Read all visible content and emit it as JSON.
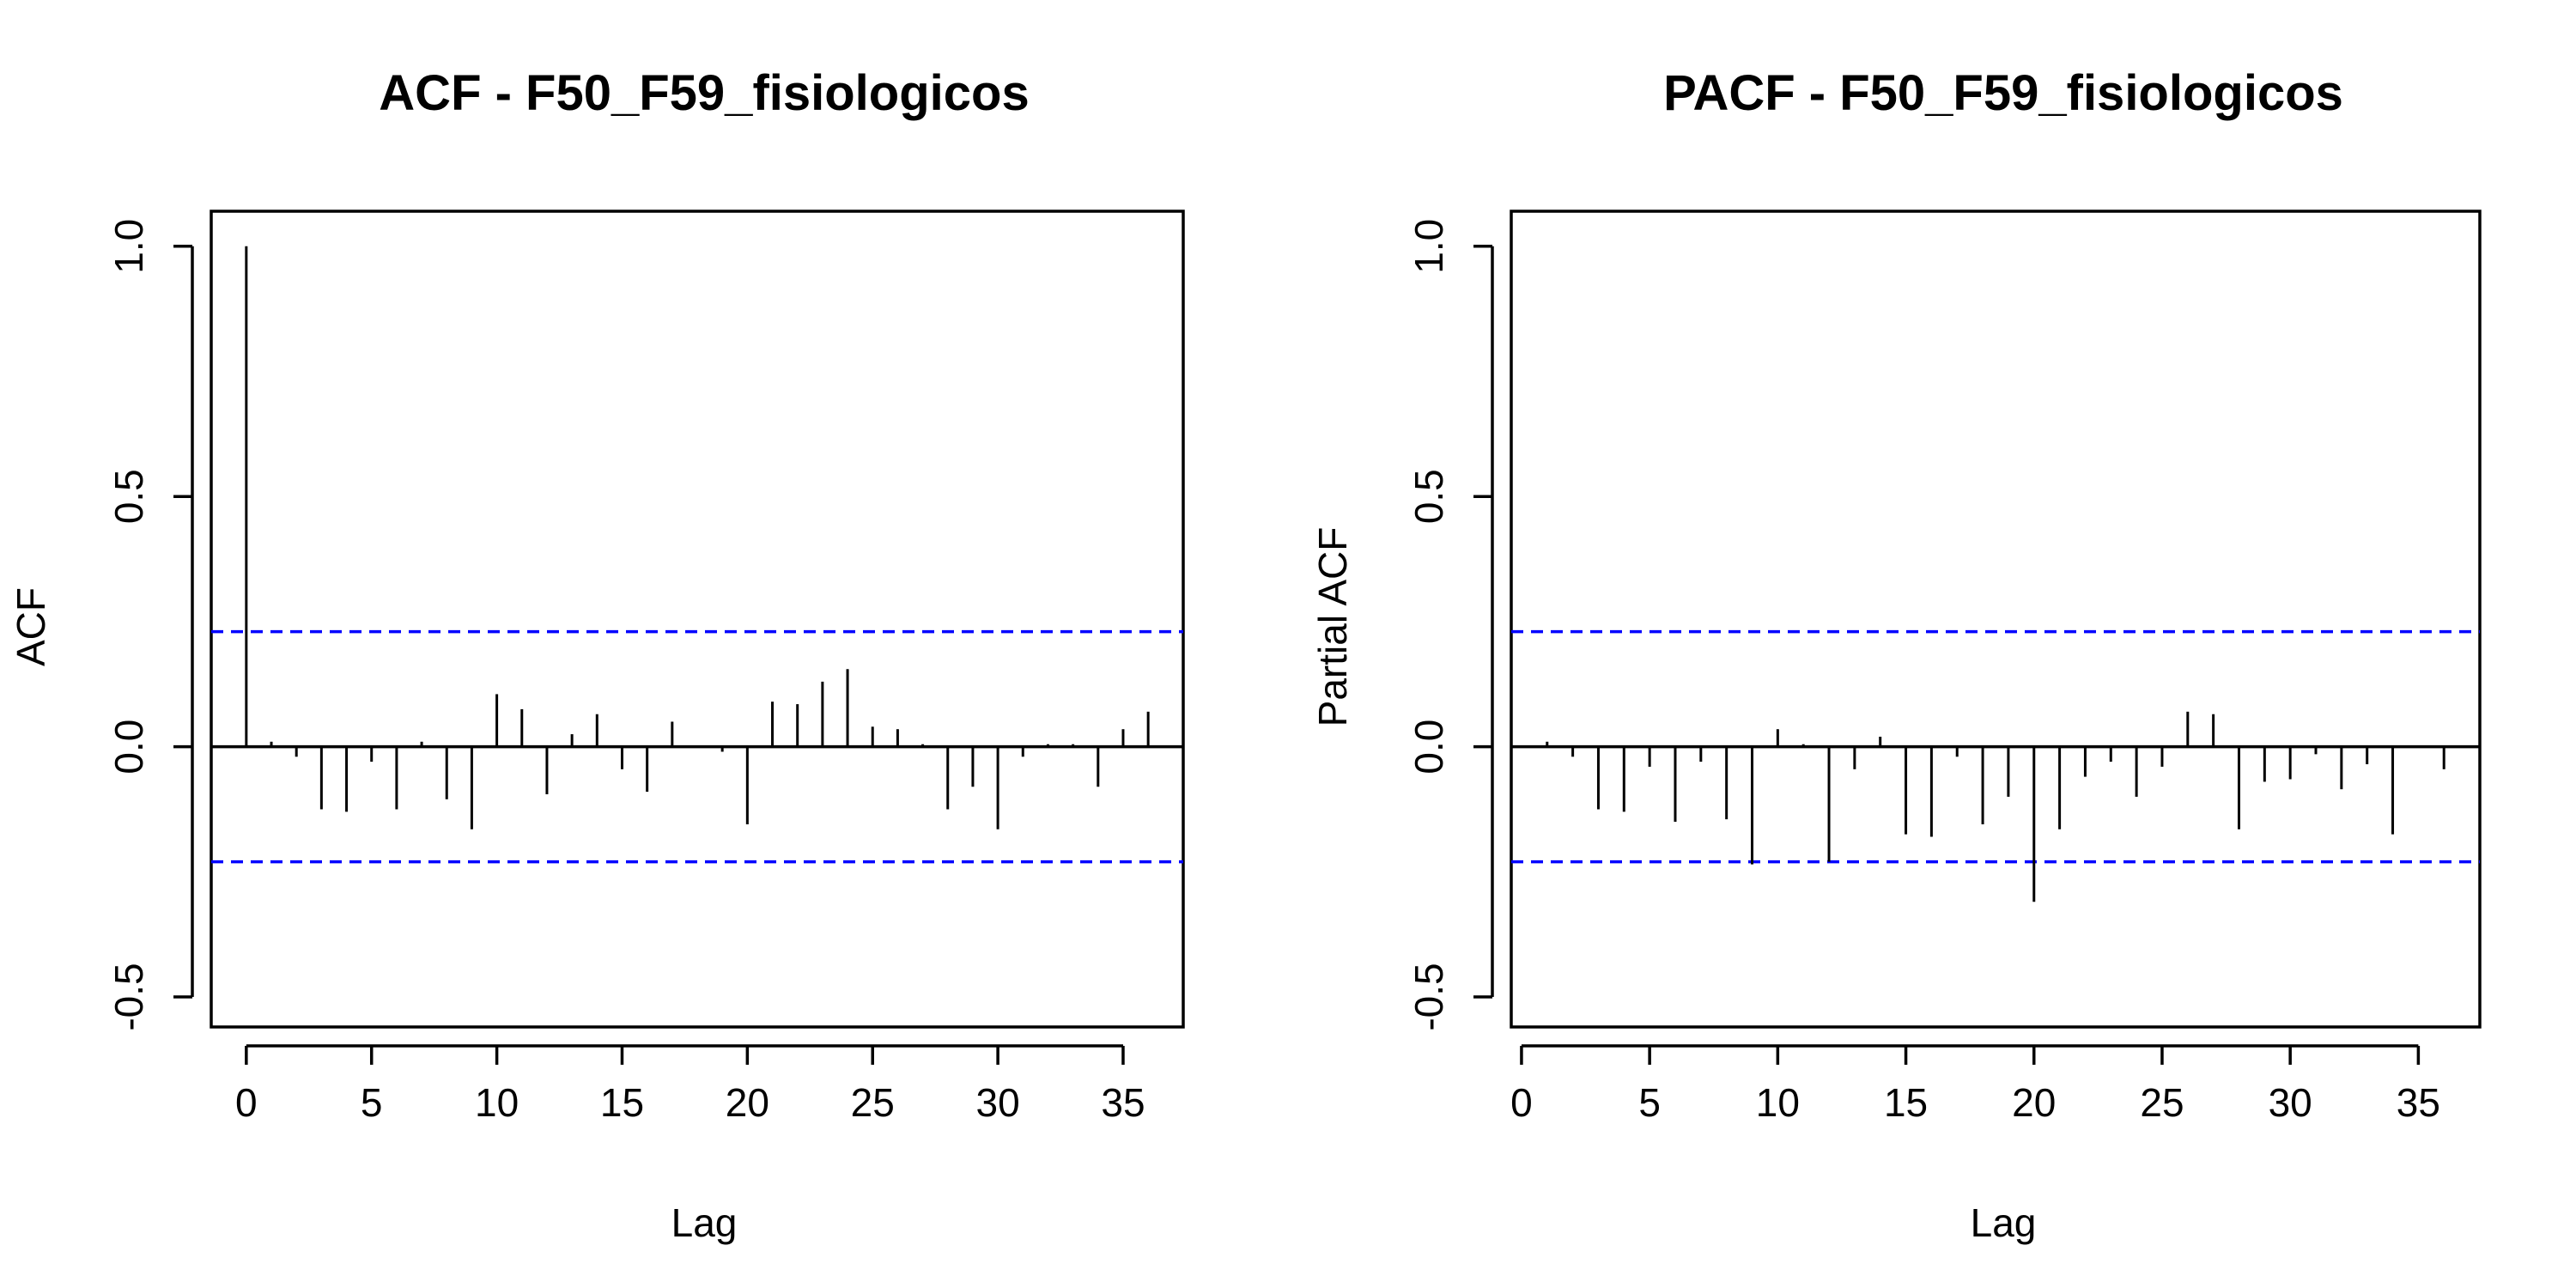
{
  "colors": {
    "background": "#ffffff",
    "ink": "#000000",
    "confidence": "#0000ff"
  },
  "chart_data": [
    {
      "type": "bar",
      "title": "ACF - F50_F59_fisiologicos",
      "xlabel": "Lag",
      "ylabel": "ACF",
      "xlim": [
        -1.4,
        37.4
      ],
      "ylim": [
        -0.56,
        1.07
      ],
      "x_ticks": [
        "0",
        "5",
        "10",
        "15",
        "20",
        "25",
        "30",
        "35"
      ],
      "y_ticks": [
        "-0.5",
        "0.0",
        "0.5",
        "1.0"
      ],
      "confidence_band": [
        0.23,
        -0.23
      ],
      "lags": [
        0,
        1,
        2,
        3,
        4,
        5,
        6,
        7,
        8,
        9,
        10,
        11,
        12,
        13,
        14,
        15,
        16,
        17,
        18,
        19,
        20,
        21,
        22,
        23,
        24,
        25,
        26,
        27,
        28,
        29,
        30,
        31,
        32,
        33,
        34,
        35,
        36
      ],
      "values": [
        1.0,
        0.01,
        -0.02,
        -0.125,
        -0.13,
        -0.03,
        -0.125,
        0.01,
        -0.105,
        -0.165,
        0.105,
        0.075,
        -0.095,
        0.025,
        0.065,
        -0.045,
        -0.09,
        0.05,
        0.0,
        -0.01,
        -0.155,
        0.09,
        0.085,
        0.13,
        0.155,
        0.04,
        0.035,
        0.005,
        -0.125,
        -0.08,
        -0.165,
        -0.02,
        0.005,
        0.005,
        -0.08,
        0.035,
        0.07
      ]
    },
    {
      "type": "bar",
      "title": "PACF - F50_F59_fisiologicos",
      "xlabel": "Lag",
      "ylabel": "Partial ACF",
      "xlim": [
        -0.4,
        37.4
      ],
      "ylim": [
        -0.56,
        1.07
      ],
      "x_ticks": [
        "0",
        "5",
        "10",
        "15",
        "20",
        "25",
        "30",
        "35"
      ],
      "y_ticks": [
        "-0.5",
        "0.0",
        "0.5",
        "1.0"
      ],
      "confidence_band": [
        0.23,
        -0.23
      ],
      "lags": [
        1,
        2,
        3,
        4,
        5,
        6,
        7,
        8,
        9,
        10,
        11,
        12,
        13,
        14,
        15,
        16,
        17,
        18,
        19,
        20,
        21,
        22,
        23,
        24,
        25,
        26,
        27,
        28,
        29,
        30,
        31,
        32,
        33,
        34,
        35,
        36
      ],
      "values": [
        0.01,
        -0.02,
        -0.125,
        -0.13,
        -0.04,
        -0.15,
        -0.03,
        -0.145,
        -0.235,
        0.035,
        0.005,
        -0.23,
        -0.045,
        0.02,
        -0.175,
        -0.18,
        -0.02,
        -0.155,
        -0.1,
        -0.31,
        -0.165,
        -0.06,
        -0.03,
        -0.1,
        -0.04,
        0.07,
        0.065,
        -0.165,
        -0.07,
        -0.065,
        -0.015,
        -0.085,
        -0.035,
        -0.175,
        0.0,
        -0.045
      ]
    }
  ]
}
